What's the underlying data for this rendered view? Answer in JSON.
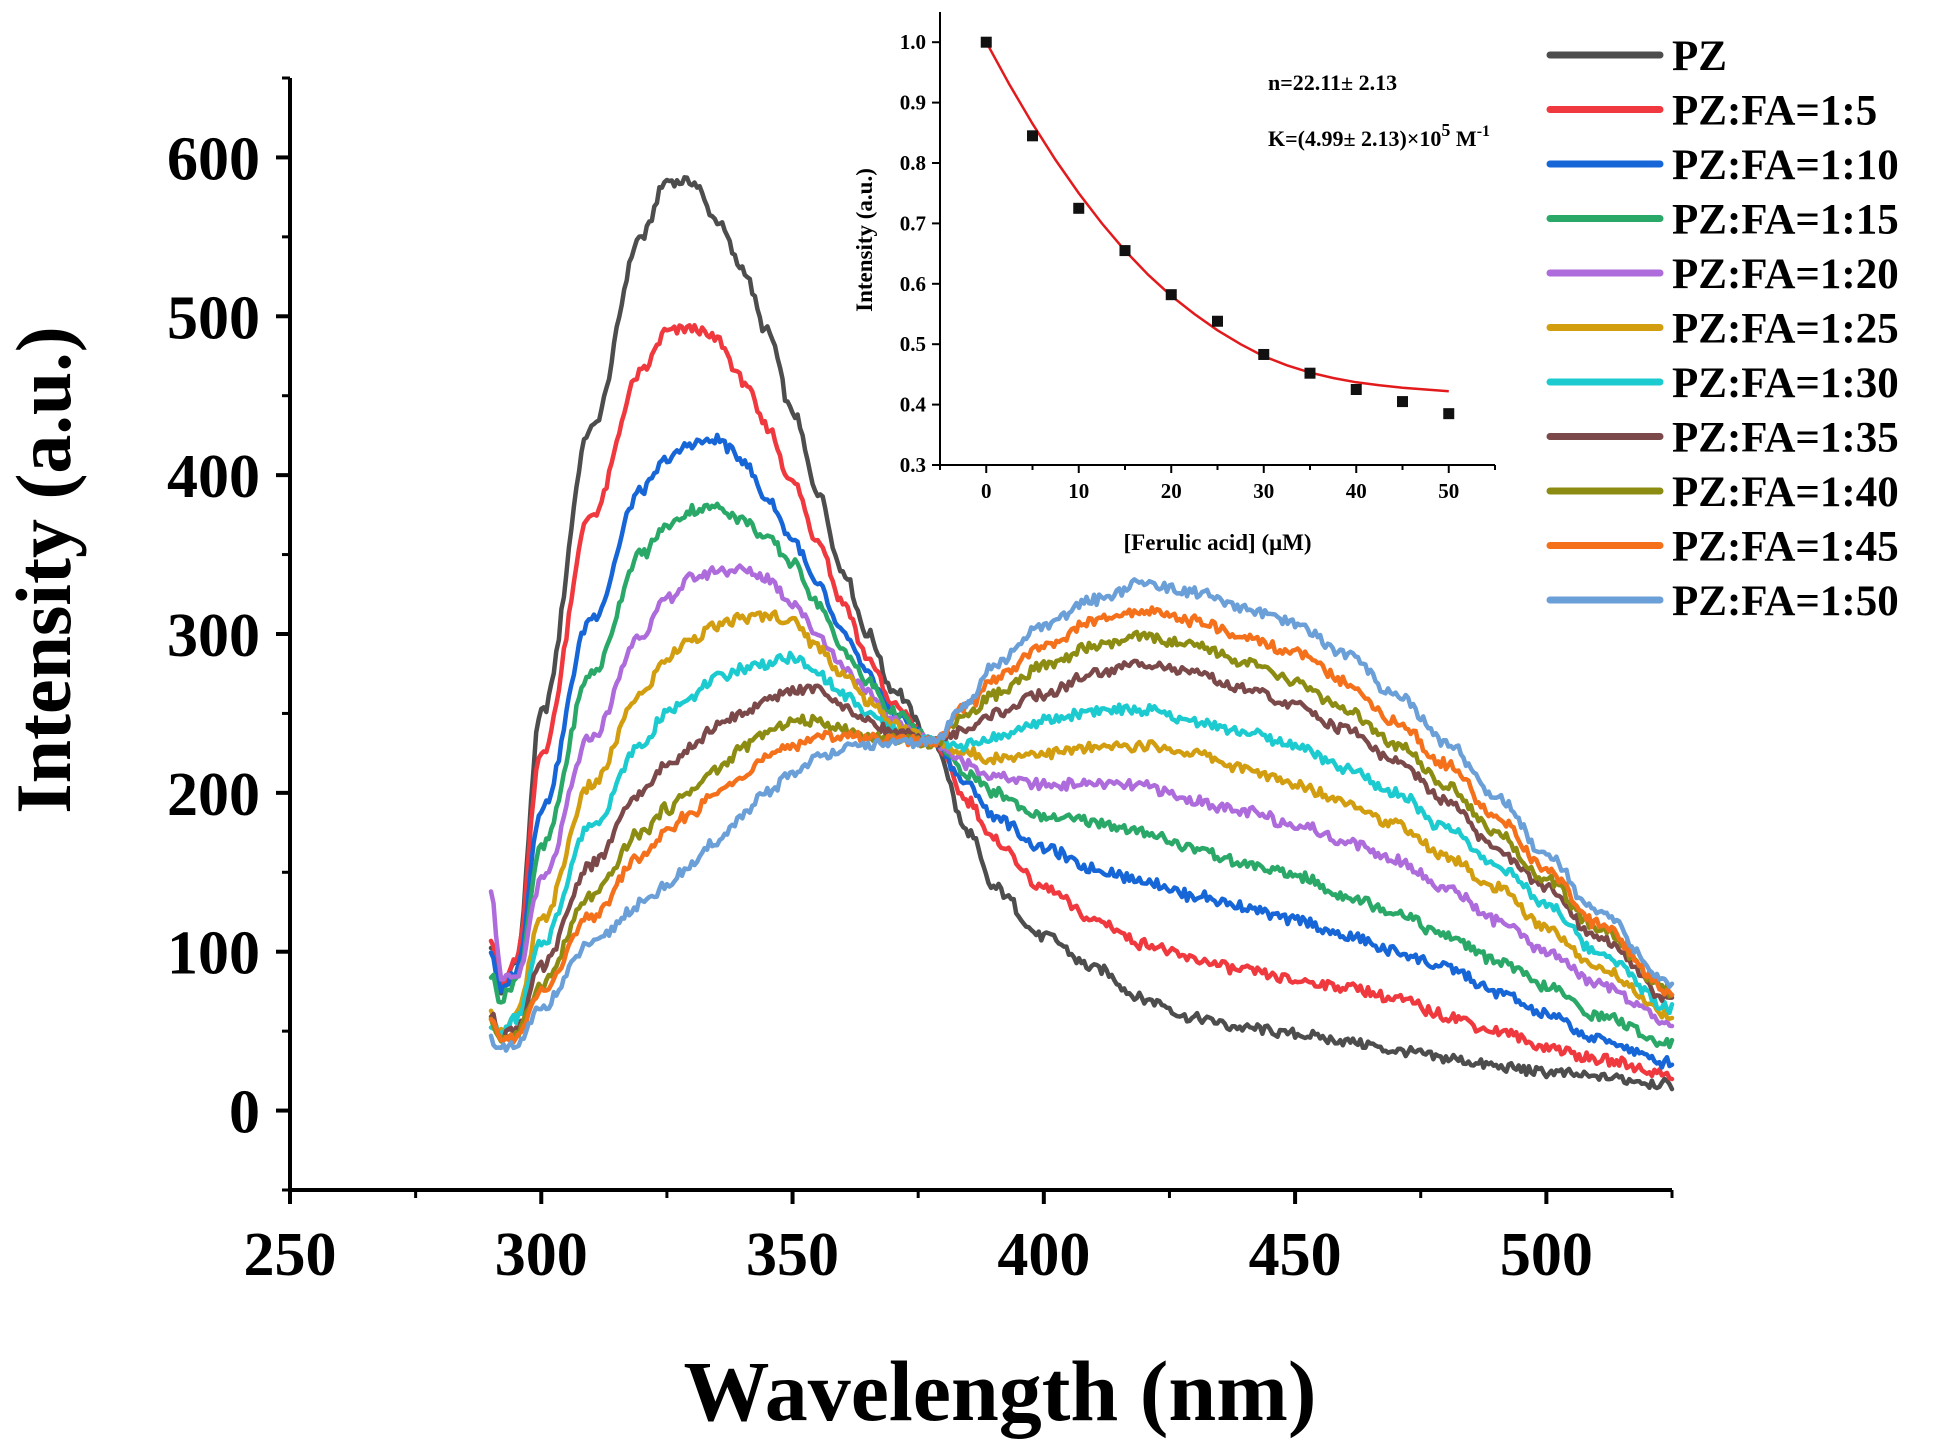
{
  "chart_data": [
    {
      "type": "line",
      "title": "",
      "xlabel": "Wavelength (nm)",
      "ylabel": "Intensity (a.u.)",
      "xlim": [
        250,
        525
      ],
      "ylim": [
        -50,
        650
      ],
      "x_ticks": [
        250,
        300,
        350,
        400,
        450,
        500
      ],
      "y_ticks": [
        0,
        100,
        200,
        300,
        400,
        500,
        600
      ],
      "x_tick_labels": [
        "250",
        "300",
        "350",
        "400",
        "450",
        "500"
      ],
      "y_tick_labels": [
        "0",
        "100",
        "200",
        "300",
        "400",
        "500",
        "600"
      ],
      "grid": false,
      "legend_position": "right",
      "isosbestic_point": {
        "x": 378,
        "y": 232
      },
      "x": [
        290,
        292,
        295,
        300,
        310,
        320,
        325,
        330,
        335,
        340,
        345,
        350,
        355,
        360,
        365,
        370,
        378,
        385,
        390,
        400,
        410,
        420,
        430,
        440,
        450,
        460,
        470,
        480,
        490,
        500,
        510,
        525
      ],
      "series": [
        {
          "name": "PZ",
          "color": "#4d4d4d",
          "values": [
            105,
            75,
            95,
            250,
            430,
            550,
            585,
            585,
            560,
            530,
            490,
            440,
            390,
            340,
            300,
            265,
            232,
            175,
            140,
            110,
            90,
            70,
            58,
            52,
            48,
            44,
            38,
            33,
            28,
            24,
            21,
            17
          ]
        },
        {
          "name": "PZ:FA=1:5",
          "color": "#f0393e",
          "values": [
            110,
            78,
            95,
            225,
            375,
            465,
            490,
            493,
            485,
            460,
            430,
            395,
            360,
            320,
            285,
            255,
            232,
            195,
            170,
            140,
            120,
            105,
            95,
            88,
            82,
            78,
            70,
            60,
            50,
            40,
            32,
            23
          ]
        },
        {
          "name": "PZ:FA=1:10",
          "color": "#1666d8",
          "values": [
            100,
            75,
            88,
            190,
            310,
            390,
            410,
            420,
            422,
            410,
            385,
            360,
            330,
            300,
            275,
            250,
            232,
            205,
            185,
            165,
            152,
            145,
            135,
            128,
            120,
            110,
            100,
            90,
            75,
            60,
            45,
            30
          ]
        },
        {
          "name": "PZ:FA=1:15",
          "color": "#2aa868",
          "values": [
            85,
            70,
            82,
            165,
            275,
            350,
            368,
            378,
            380,
            372,
            360,
            345,
            320,
            290,
            270,
            250,
            232,
            212,
            200,
            185,
            182,
            175,
            165,
            155,
            148,
            135,
            125,
            110,
            95,
            78,
            60,
            42
          ]
        },
        {
          "name": "PZ:FA=1:20",
          "color": "#ad6bdb",
          "values": [
            140,
            85,
            82,
            145,
            235,
            300,
            322,
            335,
            340,
            340,
            335,
            320,
            300,
            280,
            262,
            245,
            232,
            218,
            210,
            205,
            206,
            204,
            195,
            188,
            180,
            170,
            158,
            140,
            120,
            100,
            80,
            55
          ]
        },
        {
          "name": "PZ:FA=1:25",
          "color": "#d29d0f",
          "values": [
            60,
            50,
            60,
            120,
            205,
            262,
            285,
            298,
            305,
            310,
            312,
            308,
            292,
            275,
            258,
            244,
            232,
            225,
            222,
            225,
            228,
            230,
            225,
            215,
            205,
            195,
            180,
            160,
            140,
            115,
            90,
            60
          ]
        },
        {
          "name": "PZ:FA=1:30",
          "color": "#1ccbcf",
          "values": [
            55,
            48,
            58,
            105,
            180,
            230,
            250,
            262,
            272,
            278,
            282,
            285,
            275,
            262,
            250,
            240,
            232,
            230,
            235,
            245,
            252,
            252,
            245,
            238,
            230,
            215,
            200,
            178,
            155,
            130,
            100,
            65
          ]
        },
        {
          "name": "PZ:FA=1:35",
          "color": "#7b4949",
          "values": [
            60,
            48,
            52,
            90,
            155,
            200,
            218,
            230,
            242,
            250,
            258,
            265,
            265,
            255,
            245,
            238,
            232,
            240,
            250,
            262,
            275,
            282,
            275,
            265,
            255,
            240,
            220,
            195,
            165,
            140,
            110,
            70
          ]
        },
        {
          "name": "PZ:FA=1:40",
          "color": "#8c8c12",
          "values": [
            55,
            45,
            48,
            80,
            135,
            175,
            190,
            202,
            215,
            228,
            238,
            245,
            245,
            240,
            236,
            234,
            232,
            250,
            262,
            280,
            292,
            298,
            292,
            282,
            270,
            252,
            230,
            205,
            175,
            145,
            115,
            75
          ]
        },
        {
          "name": "PZ:FA=1:45",
          "color": "#f5701b",
          "values": [
            55,
            45,
            46,
            75,
            122,
            160,
            175,
            188,
            200,
            212,
            222,
            230,
            235,
            236,
            235,
            234,
            232,
            255,
            272,
            292,
            308,
            315,
            308,
            298,
            288,
            270,
            245,
            218,
            185,
            152,
            118,
            75
          ]
        },
        {
          "name": "PZ:FA=1:50",
          "color": "#6a9fd8",
          "values": [
            45,
            38,
            40,
            65,
            105,
            130,
            142,
            155,
            170,
            185,
            200,
            212,
            222,
            228,
            230,
            231,
            232,
            258,
            280,
            305,
            322,
            332,
            326,
            316,
            306,
            288,
            262,
            232,
            198,
            162,
            125,
            80
          ]
        }
      ]
    },
    {
      "type": "scatter",
      "title": "",
      "xlabel": "[Ferulic acid] (μM)",
      "ylabel": "Intensity (a.u.)",
      "xlim": [
        -5,
        55
      ],
      "ylim": [
        0.3,
        1.05
      ],
      "x_ticks": [
        0,
        10,
        20,
        30,
        40,
        50
      ],
      "y_ticks": [
        0.3,
        0.4,
        0.5,
        0.6,
        0.7,
        0.8,
        0.9,
        1.0
      ],
      "x_tick_labels": [
        "0",
        "10",
        "20",
        "30",
        "40",
        "50"
      ],
      "y_tick_labels": [
        "0.3",
        "0.4",
        "0.5",
        "0.6",
        "0.7",
        "0.8",
        "0.9",
        "1.0"
      ],
      "points": {
        "x": [
          0,
          5,
          10,
          15,
          20,
          25,
          30,
          35,
          40,
          45,
          50
        ],
        "y": [
          1.0,
          0.845,
          0.725,
          0.655,
          0.582,
          0.538,
          0.483,
          0.452,
          0.425,
          0.405,
          0.385
        ]
      },
      "fit_line": {
        "color": "#e31a1c",
        "x": [
          0,
          2.5,
          5,
          7.5,
          10,
          12.5,
          15,
          17.5,
          20,
          22.5,
          25,
          27.5,
          30,
          32.5,
          35,
          37.5,
          40,
          42.5,
          45,
          47.5,
          50
        ],
        "y": [
          1.0,
          0.93,
          0.865,
          0.805,
          0.75,
          0.7,
          0.655,
          0.615,
          0.58,
          0.55,
          0.523,
          0.5,
          0.48,
          0.465,
          0.453,
          0.444,
          0.437,
          0.432,
          0.428,
          0.425,
          0.422
        ]
      },
      "annotations": {
        "n": "n=22.11± 2.13",
        "k_prefix": "K=(4.99± 2.13)×10",
        "k_exp": "5",
        "k_unit": " M",
        "k_unit_exp": "-1"
      }
    }
  ]
}
